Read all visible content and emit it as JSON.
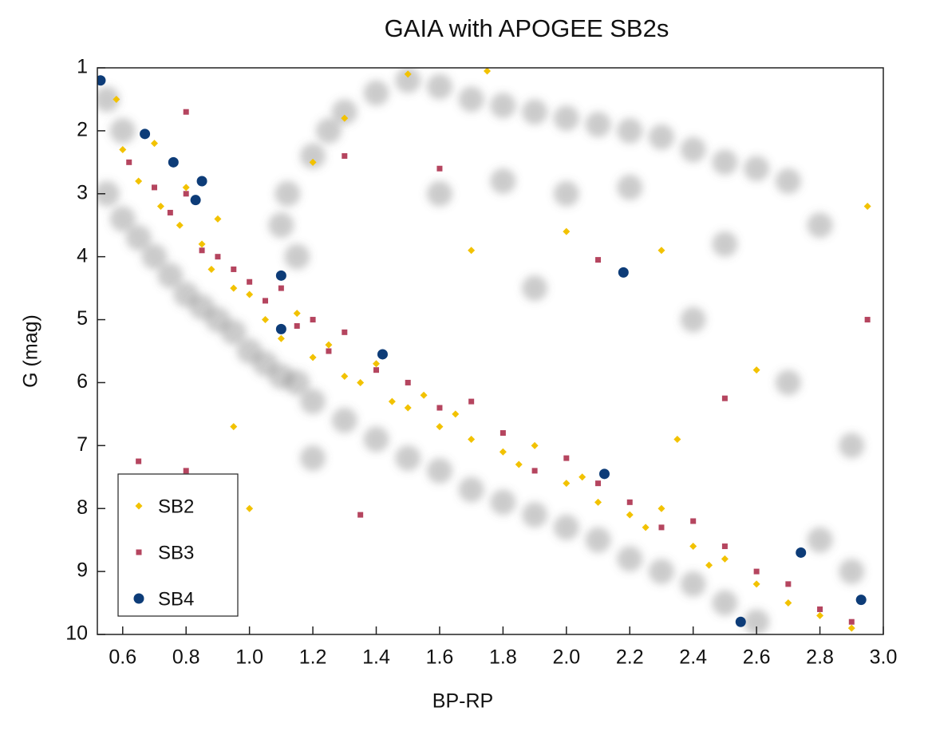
{
  "chart_data": {
    "type": "scatter",
    "title": "GAIA with APOGEE SB2s",
    "x_label": "BP-RP",
    "y_label": "G (mag)",
    "xlim": [
      0.52,
      3.0
    ],
    "ylim": [
      1,
      10
    ],
    "y_inverted": true,
    "xticks": [
      0.6,
      0.8,
      {
        "value": 1,
        "label": "1.0"
      },
      1.2,
      1.4,
      1.6,
      1.8,
      {
        "value": 2,
        "label": "2.0"
      },
      2.2,
      2.4,
      2.6,
      2.8,
      {
        "value": 3,
        "label": "3.0"
      }
    ],
    "yticks": [
      1,
      2,
      3,
      4,
      5,
      6,
      7,
      8,
      9,
      10
    ],
    "legend": "lower left",
    "series": [
      {
        "color": "#6a6a6a",
        "marker": "haze",
        "x": [
          0.55,
          0.6,
          0.65,
          0.7,
          0.75,
          0.8,
          0.85,
          0.9,
          0.95,
          1.0,
          1.05,
          1.1,
          1.15,
          1.2,
          1.3,
          1.4,
          1.5,
          1.6,
          1.7,
          1.8,
          1.9,
          2.0,
          2.1,
          2.2,
          2.3,
          2.4,
          2.5,
          2.6,
          1.15,
          1.1,
          1.12,
          1.2,
          1.25,
          1.3,
          1.4,
          1.5,
          1.6,
          1.7,
          1.8,
          1.9,
          2.0,
          2.1,
          2.2,
          2.3,
          2.4,
          2.5,
          2.6,
          2.7,
          1.6,
          1.8,
          2.0,
          2.2,
          2.5,
          2.8,
          1.9,
          2.4,
          2.7,
          2.9,
          2.8,
          1.2,
          2.9,
          0.55,
          0.6
        ],
        "values": [
          3.0,
          3.4,
          3.7,
          4.0,
          4.3,
          4.6,
          4.8,
          5.0,
          5.2,
          5.5,
          5.7,
          5.9,
          6.0,
          6.3,
          6.6,
          6.9,
          7.2,
          7.4,
          7.7,
          7.9,
          8.1,
          8.3,
          8.5,
          8.8,
          9.0,
          9.2,
          9.5,
          9.8,
          4.0,
          3.5,
          3.0,
          2.4,
          2.0,
          1.7,
          1.4,
          1.2,
          1.3,
          1.5,
          1.6,
          1.7,
          1.8,
          1.9,
          2.0,
          2.1,
          2.3,
          2.5,
          2.6,
          2.8,
          3.0,
          2.8,
          3.0,
          2.9,
          3.8,
          3.5,
          4.5,
          5.0,
          6.0,
          7.0,
          8.5,
          7.2,
          9.0,
          1.5,
          2.0
        ]
      },
      {
        "name": "SB2",
        "color": "#f2c200",
        "marker": "diamond",
        "x": [
          0.6,
          0.65,
          0.7,
          0.72,
          0.78,
          0.8,
          0.85,
          0.88,
          0.9,
          0.95,
          1.0,
          1.05,
          1.1,
          1.15,
          1.2,
          1.25,
          1.3,
          1.35,
          1.4,
          1.45,
          1.5,
          1.55,
          1.6,
          1.65,
          1.7,
          1.8,
          1.85,
          1.9,
          2.0,
          2.05,
          2.1,
          2.2,
          2.25,
          2.3,
          2.4,
          2.45,
          2.5,
          2.6,
          2.7,
          2.8,
          2.9,
          1.2,
          1.3,
          1.5,
          1.75,
          2.3,
          2.6,
          2.95,
          1.0,
          0.95,
          2.35,
          1.7,
          2.0,
          0.58
        ],
        "values": [
          2.3,
          2.8,
          2.2,
          3.2,
          3.5,
          2.9,
          3.8,
          4.2,
          3.4,
          4.5,
          4.6,
          5.0,
          5.3,
          4.9,
          5.6,
          5.4,
          5.9,
          6.0,
          5.7,
          6.3,
          6.4,
          6.2,
          6.7,
          6.5,
          6.9,
          7.1,
          7.3,
          7.0,
          7.6,
          7.5,
          7.9,
          8.1,
          8.3,
          8.0,
          8.6,
          8.9,
          8.8,
          9.2,
          9.5,
          9.7,
          9.9,
          2.5,
          1.8,
          1.1,
          1.05,
          3.9,
          5.8,
          3.2,
          8.0,
          6.7,
          6.9,
          3.9,
          3.6,
          1.5
        ]
      },
      {
        "name": "SB3",
        "color": "#b5455f",
        "marker": "square",
        "x": [
          0.62,
          0.7,
          0.75,
          0.8,
          0.85,
          0.9,
          0.95,
          1.0,
          1.05,
          1.1,
          1.15,
          1.2,
          1.25,
          1.3,
          1.4,
          1.5,
          1.6,
          1.7,
          1.8,
          1.9,
          2.0,
          2.1,
          2.2,
          2.3,
          2.4,
          2.5,
          2.6,
          2.7,
          2.8,
          2.9,
          0.8,
          1.3,
          1.6,
          0.65,
          0.8,
          1.35,
          2.1,
          2.5,
          2.95
        ],
        "values": [
          2.5,
          2.9,
          3.3,
          3.0,
          3.9,
          4.0,
          4.2,
          4.4,
          4.7,
          4.5,
          5.1,
          5.0,
          5.5,
          5.2,
          5.8,
          6.0,
          6.4,
          6.3,
          6.8,
          7.4,
          7.2,
          7.6,
          7.9,
          8.3,
          8.2,
          8.6,
          9.0,
          9.2,
          9.6,
          9.8,
          1.7,
          2.4,
          2.6,
          7.25,
          7.4,
          8.1,
          4.05,
          6.25,
          5.0
        ]
      },
      {
        "name": "SB4",
        "color": "#0d3c78",
        "marker": "circle",
        "x": [
          0.53,
          0.67,
          0.76,
          0.85,
          0.83,
          1.1,
          1.1,
          1.42,
          2.18,
          2.12,
          2.74,
          2.55,
          2.93
        ],
        "values": [
          1.2,
          2.05,
          2.5,
          2.8,
          3.1,
          4.3,
          5.15,
          5.55,
          4.25,
          7.45,
          8.7,
          9.8,
          9.45
        ]
      }
    ]
  }
}
